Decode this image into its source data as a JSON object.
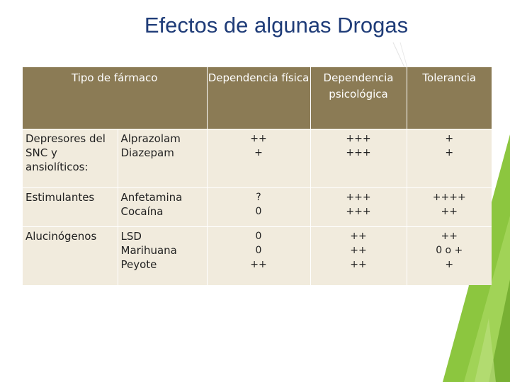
{
  "slide": {
    "title": "Efectos de algunas Drogas",
    "accent_color": "#8cc63f"
  },
  "table": {
    "headers": {
      "type": "Tipo de fármaco",
      "physical": "Dependencia física",
      "psychological": "Dependencia psicológica",
      "tolerance": "Tolerancia"
    },
    "rows": [
      {
        "category": "Depresores del SNC y ansiolíticos:",
        "drugs": "Alprazolam\nDiazepam",
        "physical": "++\n+",
        "psychological": "+++\n+++",
        "tolerance": "+\n+"
      },
      {
        "category": "Estimulantes",
        "drugs": "Anfetamina\nCocaína",
        "physical": "?\n0",
        "psychological": "+++\n+++",
        "tolerance": "++++\n++"
      },
      {
        "category": "Alucinógenos",
        "drugs": "LSD\nMarihuana\nPeyote",
        "physical": "0\n0\n++",
        "psychological": "++\n++\n++",
        "tolerance": "++\n0 o +\n+"
      }
    ]
  }
}
